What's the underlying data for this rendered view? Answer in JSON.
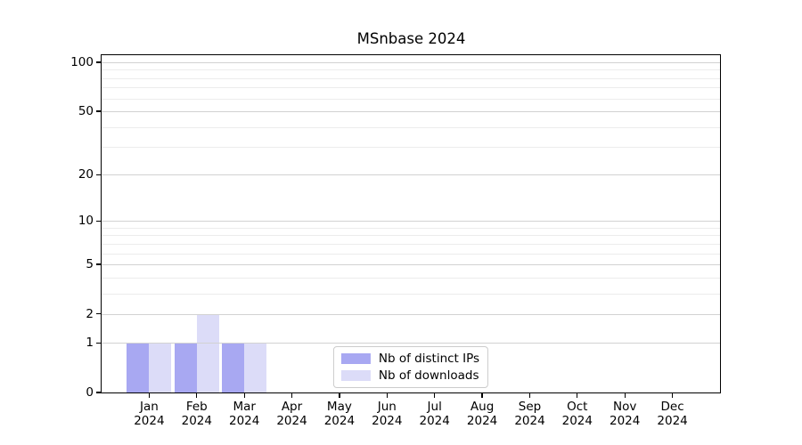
{
  "title": "MSnbase 2024",
  "chart_data": {
    "type": "bar",
    "title": "MSnbase 2024",
    "categories": [
      "Jan",
      "Feb",
      "Mar",
      "Apr",
      "May",
      "Jun",
      "Jul",
      "Aug",
      "Sep",
      "Oct",
      "Nov",
      "Dec"
    ],
    "x_year_label": "2024",
    "series": [
      {
        "name": "Nb of distinct IPs",
        "color": "#a8a8f2",
        "values": [
          1,
          1,
          1,
          0,
          0,
          0,
          0,
          0,
          0,
          0,
          0,
          0
        ]
      },
      {
        "name": "Nb of downloads",
        "color": "#dcdcf8",
        "values": [
          1,
          2,
          1,
          0,
          0,
          0,
          0,
          0,
          0,
          0,
          0,
          0
        ]
      }
    ],
    "xlabel": "",
    "ylabel": "",
    "y_axis": {
      "scale": "log1p",
      "tick_values": [
        0,
        1,
        2,
        5,
        10,
        20,
        50,
        100
      ],
      "tick_labels": [
        "0",
        "1",
        "2",
        "5",
        "10",
        "20",
        "50",
        "100"
      ],
      "minor_gridline_values": [
        3,
        4,
        6,
        7,
        8,
        9,
        30,
        40,
        60,
        70,
        80,
        90
      ],
      "ylim": [
        0,
        110
      ]
    },
    "grid": true,
    "legend": {
      "position": "bottom-center",
      "entries": [
        "Nb of distinct IPs",
        "Nb of downloads"
      ]
    }
  },
  "colors": {
    "bar_distinct_ips": "#a8a8f2",
    "bar_downloads": "#dcdcf8",
    "grid_major": "#d2d2d2",
    "grid_minor": "#ececec",
    "axis": "#000000",
    "text": "#000000",
    "legend_border": "#cccccc",
    "background": "#ffffff"
  }
}
